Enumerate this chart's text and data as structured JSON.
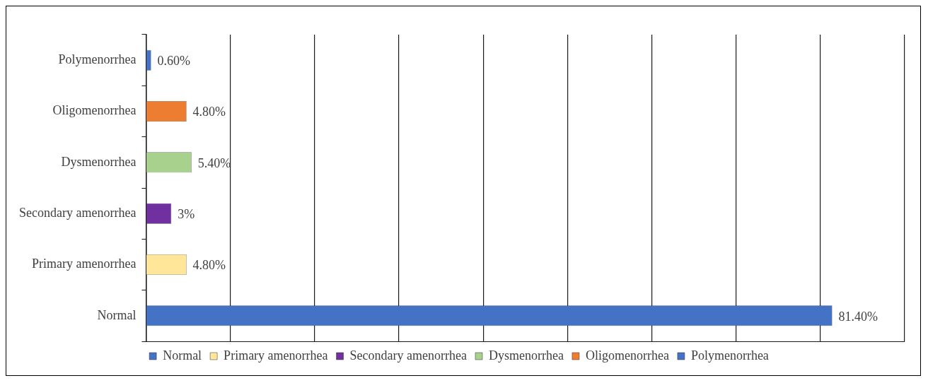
{
  "chart_data": {
    "type": "bar",
    "orientation": "horizontal",
    "categories": [
      "Polymenorrhea",
      "Oligomenorrhea",
      "Dysmenorrhea",
      "Secondary amenorrhea",
      "Primary amenorrhea",
      "Normal"
    ],
    "series": [
      {
        "name": "Normal",
        "color": "#4472c4",
        "values": [
          null,
          null,
          null,
          null,
          null,
          81.4
        ],
        "value_labels": [
          null,
          null,
          null,
          null,
          null,
          "81.40%"
        ]
      },
      {
        "name": "Primary amenorrhea",
        "color": "#ffe699",
        "values": [
          null,
          null,
          null,
          null,
          4.8,
          null
        ],
        "value_labels": [
          null,
          null,
          null,
          null,
          "4.80%",
          null
        ]
      },
      {
        "name": "Secondary amenorrhea",
        "color": "#7030a0",
        "values": [
          null,
          null,
          null,
          3,
          null,
          null
        ],
        "value_labels": [
          null,
          null,
          null,
          "3%",
          null,
          null
        ]
      },
      {
        "name": "Dysmenorrhea",
        "color": "#a9d18e",
        "values": [
          null,
          null,
          5.4,
          null,
          null,
          null
        ],
        "value_labels": [
          null,
          null,
          "5.40%",
          null,
          null,
          null
        ]
      },
      {
        "name": "Oligomenorrhea",
        "color": "#ed7d31",
        "values": [
          null,
          4.8,
          null,
          null,
          null,
          null
        ],
        "value_labels": [
          null,
          "4.80%",
          null,
          null,
          null,
          null
        ]
      },
      {
        "name": "Polymenorrhea",
        "color": "#4472c4",
        "values": [
          0.6,
          null,
          null,
          null,
          null,
          null
        ],
        "value_labels": [
          "0.60%",
          null,
          null,
          null,
          null,
          null
        ]
      }
    ],
    "xlim": [
      0,
      90
    ],
    "xticks": [
      {
        "value": 0,
        "label": null
      },
      {
        "value": 10,
        "label": null
      },
      {
        "value": 20,
        "label": null
      },
      {
        "value": 30,
        "label": null
      },
      {
        "value": 40,
        "label": null
      },
      {
        "value": 50,
        "label": null
      },
      {
        "value": 60,
        "label": null
      },
      {
        "value": 70,
        "label": null
      },
      {
        "value": 80,
        "label": null
      },
      {
        "value": 90,
        "label": null
      }
    ],
    "grid": "x",
    "tick_labels": "y",
    "legend": "bottom"
  }
}
